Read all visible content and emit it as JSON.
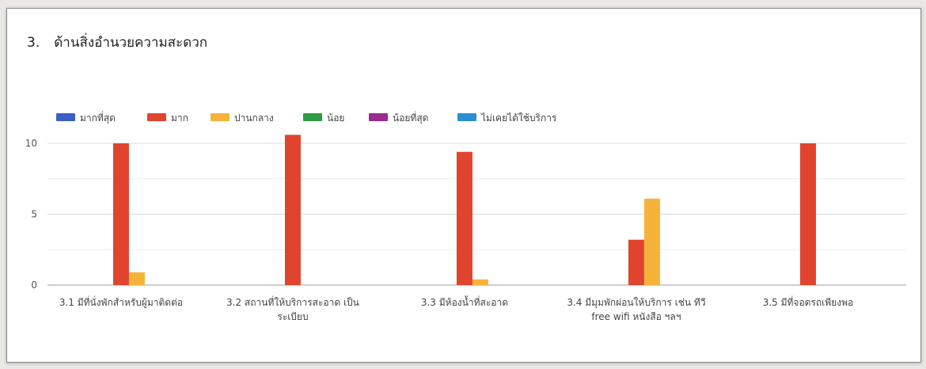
{
  "section": {
    "number": "3.",
    "title": "ด้านสิ่งอำนวยความสะดวก"
  },
  "chart_data": {
    "type": "bar",
    "legend_position": "top-left",
    "grid": true,
    "ylim": [
      0,
      10.8
    ],
    "yticks": [
      0,
      5,
      10
    ],
    "categories": [
      [
        "3.1 มีที่นั่งพักสำหรับผู้มาติดต่อ"
      ],
      [
        "3.2 สถานที่ให้บริการสะอาด เป็น",
        "ระเบียบ"
      ],
      [
        "3.3 มีห้องน้ำที่สะอาด"
      ],
      [
        "3.4 มีมุมพักผ่อนให้บริการ เช่น ทีวี",
        "free wifi หนังสือ ฯลฯ"
      ],
      [
        "3.5 มีที่จอดรถเพียงพอ"
      ]
    ],
    "series": [
      {
        "name": "มากที่สุด",
        "color": "#3b5fc4",
        "values": [
          0,
          0,
          0,
          0,
          0
        ]
      },
      {
        "name": "มาก",
        "color": "#e0442f",
        "values": [
          10,
          10.6,
          9.4,
          3.2,
          10
        ]
      },
      {
        "name": "ปานกลาง",
        "color": "#f6b33a",
        "values": [
          0.9,
          0,
          0.4,
          6.1,
          0
        ]
      },
      {
        "name": "น้อย",
        "color": "#2f9a45",
        "values": [
          0,
          0,
          0,
          0,
          0
        ]
      },
      {
        "name": "น้อยที่สุด",
        "color": "#9c2a8f",
        "values": [
          0,
          0,
          0,
          0,
          0
        ]
      },
      {
        "name": "ไม่เคยได้ใช้บริการ",
        "color": "#2a8fd0",
        "values": [
          0,
          0,
          0,
          0,
          0
        ]
      }
    ]
  }
}
